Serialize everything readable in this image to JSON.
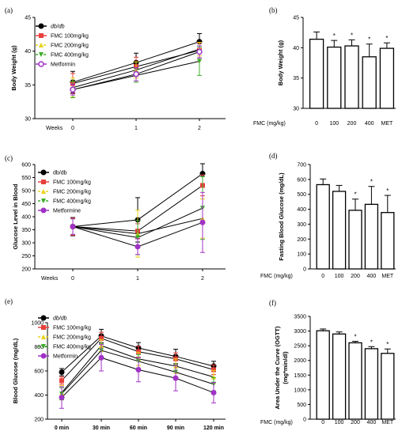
{
  "colors": {
    "dbdb": "#000000",
    "fmc100": "#e8413c",
    "fmc200": "#e8d21a",
    "fmc400": "#3fae2a",
    "metformin": "#a033c6"
  },
  "chart_data": [
    {
      "panel": "(a)",
      "type": "line",
      "ylabel": "Body Weight (g)",
      "xprefix": "Weeks",
      "x": [
        "0",
        "1",
        "2"
      ],
      "yticks": [
        "30",
        "35",
        "40",
        "45"
      ],
      "ylim": [
        30,
        45
      ],
      "series": [
        {
          "name": "db/db",
          "italic": true,
          "color": "#000000",
          "marker": "circle",
          "values": [
            35.4,
            38.3,
            41.4
          ],
          "errors": [
            1.6,
            1.4,
            1.2
          ]
        },
        {
          "name": "FMC 100mg/kg",
          "color": "#e8413c",
          "marker": "square",
          "values": [
            35.2,
            37.7,
            40.1
          ],
          "errors": [
            1.5,
            1.4,
            1.1
          ]
        },
        {
          "name": "FMC 200mg/kg",
          "color": "#e8d21a",
          "marker": "triangle-up",
          "values": [
            34.6,
            37.2,
            40.3
          ],
          "errors": [
            1.4,
            1.2,
            1.0
          ]
        },
        {
          "name": "FMC 400mg/kg",
          "color": "#3fae2a",
          "marker": "triangle-down",
          "values": [
            34.3,
            36.4,
            38.5
          ],
          "errors": [
            1.2,
            1.0,
            2.1
          ]
        },
        {
          "name": "Metformin",
          "color": "#a033c6",
          "marker": "circle-open",
          "values": [
            34.3,
            36.6,
            39.9
          ],
          "errors": [
            0.8,
            1.0,
            0.9
          ]
        }
      ]
    },
    {
      "panel": "(b)",
      "type": "bar",
      "ylabel": "Body Weight (g)",
      "xprefix": "FMC (mg/kg)",
      "categories": [
        "0",
        "100",
        "200",
        "400",
        "MET"
      ],
      "values": [
        41.4,
        40.1,
        40.3,
        38.5,
        39.9
      ],
      "errors": [
        1.2,
        1.1,
        1.0,
        2.1,
        0.9
      ],
      "significant": [
        false,
        true,
        true,
        true,
        true
      ],
      "star": "*",
      "yticks": [
        "30",
        "35",
        "40",
        "45"
      ],
      "ylim": [
        30,
        45
      ]
    },
    {
      "panel": "(c)",
      "type": "line",
      "ylabel": "Glucose Level in Blood",
      "xprefix": "Weeks",
      "x": [
        "0",
        "1",
        "2"
      ],
      "yticks": [
        "200",
        "250",
        "300",
        "350",
        "400",
        "450",
        "500",
        "550",
        "600"
      ],
      "ylim": [
        200,
        600
      ],
      "series": [
        {
          "name": "db/db",
          "color": "#000000",
          "marker": "circle",
          "values": [
            362,
            388,
            565
          ],
          "errors": [
            35,
            85,
            38
          ]
        },
        {
          "name": "FMC 100mg/kg",
          "color": "#e8413c",
          "marker": "square",
          "values": [
            362,
            345,
            520
          ],
          "errors": [
            33,
            28,
            40
          ]
        },
        {
          "name": "FMC 200mg/kg",
          "color": "#e8d21a",
          "marker": "triangle-up",
          "values": [
            362,
            335,
            393
          ],
          "errors": [
            30,
            90,
            75
          ]
        },
        {
          "name": "FMC 400mg/kg",
          "color": "#3fae2a",
          "marker": "triangle-down",
          "values": [
            362,
            320,
            433
          ],
          "errors": [
            30,
            65,
            120
          ]
        },
        {
          "name": "Metformine",
          "color": "#a033c6",
          "marker": "circle",
          "values": [
            362,
            285,
            378
          ],
          "errors": [
            30,
            30,
            115
          ]
        }
      ]
    },
    {
      "panel": "(d)",
      "type": "bar",
      "ylabel": "Fasting Blood Glucose (mg/dL)",
      "xprefix": "FMC (mg/kg)",
      "categories": [
        "0",
        "100",
        "200",
        "400",
        "MET"
      ],
      "values": [
        565,
        520,
        393,
        433,
        378
      ],
      "errors": [
        38,
        40,
        75,
        120,
        115
      ],
      "significant": [
        false,
        false,
        true,
        true,
        true
      ],
      "star": "*",
      "yticks": [
        "0",
        "100",
        "200",
        "300",
        "400",
        "500",
        "600",
        "700"
      ],
      "ylim": [
        0,
        700
      ]
    },
    {
      "panel": "(e)",
      "type": "line",
      "ylabel": "Blood Glucose (mg/dL)",
      "x": [
        "0 min",
        "30 min",
        "60 min",
        "90 min",
        "120 min"
      ],
      "yticks": [
        "200",
        "400",
        "600",
        "800",
        "1000"
      ],
      "ylim": [
        200,
        1000
      ],
      "series": [
        {
          "name": "db/db",
          "italic": true,
          "color": "#000000",
          "marker": "circle",
          "values": [
            590,
            890,
            790,
            720,
            640
          ],
          "errors": [
            30,
            55,
            45,
            60,
            40
          ]
        },
        {
          "name": "FMC 100mg/kg",
          "color": "#e8413c",
          "marker": "square",
          "values": [
            520,
            870,
            760,
            700,
            610
          ],
          "errors": [
            30,
            50,
            45,
            50,
            40
          ]
        },
        {
          "name": "FMC 200mg/kg",
          "color": "#e8d21a",
          "marker": "triangle-up",
          "values": [
            420,
            810,
            700,
            640,
            550
          ],
          "errors": [
            60,
            50,
            55,
            60,
            55
          ]
        },
        {
          "name": "FMC 400mg/kg",
          "color": "#3fae2a",
          "marker": "triangle-down",
          "values": [
            410,
            770,
            680,
            590,
            490
          ],
          "errors": [
            50,
            55,
            55,
            60,
            55
          ]
        },
        {
          "name": "Metformin",
          "color": "#a033c6",
          "marker": "circle",
          "values": [
            380,
            710,
            610,
            540,
            420
          ],
          "errors": [
            90,
            110,
            100,
            105,
            85
          ]
        }
      ]
    },
    {
      "panel": "(f)",
      "type": "bar",
      "ylabel": "Area Under the Curve (OGTT)",
      "ylabel2": "(mg*min/dl)",
      "xprefix": "FMC (mg/kg)",
      "categories": [
        "0",
        "100",
        "200",
        "400",
        "MET"
      ],
      "values": [
        3010,
        2900,
        2600,
        2400,
        2240
      ],
      "errors": [
        60,
        70,
        50,
        70,
        150
      ],
      "significant": [
        false,
        false,
        true,
        true,
        true
      ],
      "star": "*",
      "yticks": [
        "0",
        "500",
        "1000",
        "1500",
        "2000",
        "2500",
        "3000",
        "3500"
      ],
      "ylim": [
        0,
        3500
      ]
    }
  ]
}
